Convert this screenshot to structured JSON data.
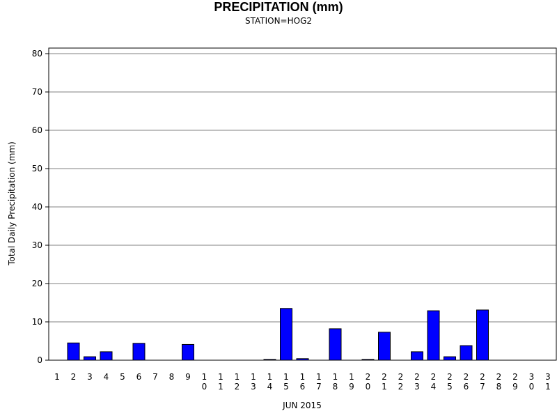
{
  "chart_data": {
    "type": "bar",
    "title": "PRECIPITATION (mm)",
    "subtitle": "STATION=HOG2",
    "xlabel": "JUN 2015",
    "ylabel": "Total Daily Precipitation (mm)",
    "ylim": [
      0,
      80
    ],
    "yticks": [
      "0",
      "10",
      "20",
      "30",
      "40",
      "50",
      "60",
      "70",
      "80"
    ],
    "grid": true,
    "categories": [
      "1",
      "2",
      "3",
      "4",
      "5",
      "6",
      "7",
      "8",
      "9",
      "10",
      "11",
      "12",
      "13",
      "14",
      "15",
      "16",
      "17",
      "18",
      "19",
      "20",
      "21",
      "22",
      "23",
      "24",
      "25",
      "26",
      "27",
      "28",
      "29",
      "30",
      "31"
    ],
    "values": [
      0,
      4.5,
      0.9,
      2.2,
      0,
      4.4,
      0,
      0,
      4.1,
      0,
      0,
      0,
      0,
      0.2,
      13.5,
      0.4,
      0,
      8.2,
      0,
      0.2,
      7.3,
      0,
      2.2,
      12.9,
      0.9,
      3.8,
      13.1,
      0,
      0,
      0,
      0
    ],
    "bar_color": "#0000ff",
    "grid_color": "#808080"
  }
}
